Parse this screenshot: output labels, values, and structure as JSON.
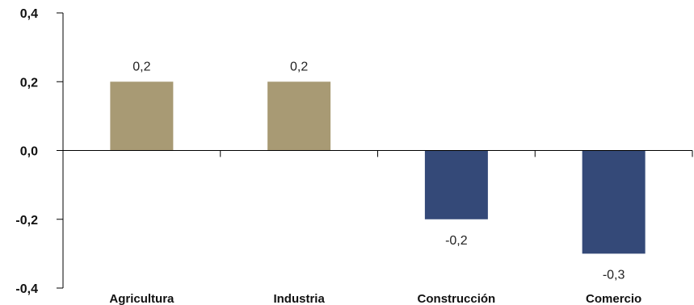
{
  "chart_data": {
    "type": "bar",
    "categories": [
      "Agricultura",
      "Industria",
      "Construcción",
      "Comercio"
    ],
    "values": [
      0.2,
      0.2,
      -0.2,
      -0.3
    ],
    "data_labels": [
      "0,2",
      "0,2",
      "-0,2",
      "-0,3"
    ],
    "ylim": [
      -0.4,
      0.4
    ],
    "yticks": [
      0.4,
      0.2,
      0.0,
      -0.2,
      -0.4
    ],
    "ytick_labels": [
      "0,4",
      "0,2",
      "0,0",
      "-0,2",
      "-0,4"
    ],
    "title": "",
    "xlabel": "",
    "ylabel": "",
    "grid": false,
    "legend": "none",
    "colors": {
      "positive": "#A89A74",
      "negative": "#344978",
      "axis": "#000000"
    }
  }
}
